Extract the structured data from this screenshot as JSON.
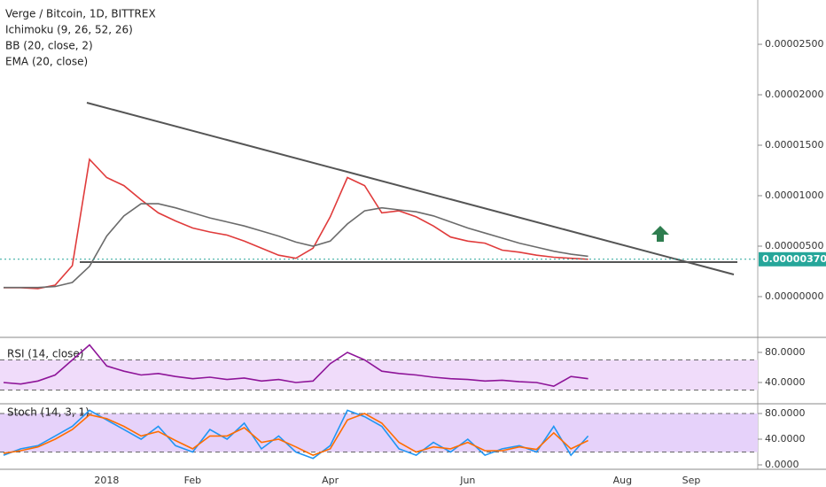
{
  "chart_data": [
    {
      "type": "line",
      "title": "Verge / Bitcoin, 1D, BITTREX",
      "indicators": [
        "Ichimoku (9, 26, 52, 26)",
        "BB (20, close, 2)",
        "EMA (20, close)"
      ],
      "categories": [
        null,
        null,
        null,
        null,
        null,
        null,
        "2018",
        null,
        null,
        null,
        null,
        "Feb",
        null,
        null,
        null,
        null,
        null,
        null,
        null,
        "Apr",
        null,
        null,
        null,
        null,
        null,
        null,
        null,
        "Jun",
        null,
        null,
        null,
        null,
        null,
        null,
        null,
        null,
        "Aug",
        null,
        null,
        null,
        "Sep",
        null,
        null,
        null
      ],
      "series": [
        {
          "color": "#e03b3b",
          "values": [
            8.8e-07,
            8.8e-07,
            8e-07,
            1.14e-06,
            3.07e-06,
            1.36e-05,
            1.18e-05,
            1.1e-05,
            9.6e-06,
            8.3e-06,
            7.5e-06,
            6.8e-06,
            6.4e-06,
            6.1e-06,
            5.5e-06,
            4.8e-06,
            4.1e-06,
            3.8e-06,
            4.8e-06,
            7.9e-06,
            1.18e-05,
            1.1e-05,
            8.3e-06,
            8.5e-06,
            7.9e-06,
            7e-06,
            5.9e-06,
            5.5e-06,
            5.3e-06,
            4.6e-06,
            4.4e-06,
            4.1e-06,
            3.9e-06,
            3.8e-06,
            3.7e-06,
            null,
            null,
            null,
            null,
            null,
            null,
            null,
            null,
            null
          ]
        },
        {
          "color": "#6b6b6b",
          "values": [
            9e-07,
            9e-07,
            9e-07,
            1e-06,
            1.4e-06,
            3e-06,
            6e-06,
            8e-06,
            9.2e-06,
            9.2e-06,
            8.8e-06,
            8.3e-06,
            7.8e-06,
            7.4e-06,
            7e-06,
            6.5e-06,
            6e-06,
            5.4e-06,
            5e-06,
            5.5e-06,
            7.2e-06,
            8.5e-06,
            8.8e-06,
            8.6e-06,
            8.4e-06,
            8e-06,
            7.4e-06,
            6.8e-06,
            6.3e-06,
            5.8e-06,
            5.3e-06,
            4.9e-06,
            4.5e-06,
            4.2e-06,
            4e-06,
            null,
            null,
            null,
            null,
            null,
            null,
            null,
            null,
            null
          ]
        }
      ],
      "ylim": [
        -3.95e-06,
        2.939e-05
      ],
      "yticks": [
        {
          "value": 0,
          "label": "0.00000000"
        },
        {
          "value": 5e-06,
          "label": "0.00000500"
        },
        {
          "value": 1e-05,
          "label": "0.00001000"
        },
        {
          "value": 1.5e-05,
          "label": "0.00001500"
        },
        {
          "value": 2e-05,
          "label": "0.00002000"
        },
        {
          "value": 2.5e-05,
          "label": "0.00002500"
        }
      ],
      "last_price": {
        "value": 3.7e-06,
        "label": "0.00000370"
      },
      "last_price_color": "#26a69a"
    },
    {
      "type": "line",
      "title": "RSI (14, close)",
      "series": [
        {
          "color": "#8e1599",
          "values": [
            40,
            38,
            42,
            50,
            70,
            90,
            62,
            55,
            50,
            52,
            48,
            45,
            47,
            44,
            46,
            42,
            44,
            40,
            42,
            65,
            80,
            70,
            55,
            52,
            50,
            47,
            45,
            44,
            42,
            43,
            41,
            40,
            35,
            48,
            45,
            null,
            null,
            null,
            null,
            null,
            null,
            null,
            null,
            null
          ]
        }
      ],
      "ylim": [
        12.9,
        98.8
      ],
      "yticks": [
        {
          "value": 80,
          "label": "80.0000"
        },
        {
          "value": 40,
          "label": "40.0000"
        }
      ],
      "band": [
        30,
        70
      ],
      "band_color": "#f0dcfa"
    },
    {
      "type": "line",
      "title": "Stoch (14, 3, 1)",
      "series": [
        {
          "color": "#2196f3",
          "values": [
            15,
            25,
            30,
            45,
            60,
            85,
            70,
            55,
            40,
            60,
            30,
            20,
            55,
            40,
            65,
            25,
            45,
            20,
            10,
            30,
            85,
            75,
            60,
            25,
            15,
            35,
            20,
            40,
            15,
            25,
            30,
            20,
            60,
            15,
            45,
            null,
            null,
            null,
            null,
            null,
            null,
            null,
            null,
            null
          ]
        },
        {
          "color": "#ff6d00",
          "values": [
            18,
            22,
            28,
            40,
            55,
            78,
            72,
            60,
            45,
            52,
            38,
            25,
            45,
            45,
            58,
            35,
            40,
            28,
            15,
            25,
            70,
            80,
            65,
            35,
            20,
            28,
            25,
            35,
            22,
            22,
            28,
            24,
            50,
            25,
            38,
            null,
            null,
            null,
            null,
            null,
            null,
            null,
            null,
            null
          ]
        }
      ],
      "ylim": [
        -6.9,
        93.8
      ],
      "yticks": [
        {
          "value": 80,
          "label": "80.0000"
        },
        {
          "value": 40,
          "label": "40.0000"
        },
        {
          "value": 0,
          "label": "0.0000"
        }
      ],
      "band": [
        20,
        80
      ],
      "band_color": "#e6d2fa"
    }
  ]
}
